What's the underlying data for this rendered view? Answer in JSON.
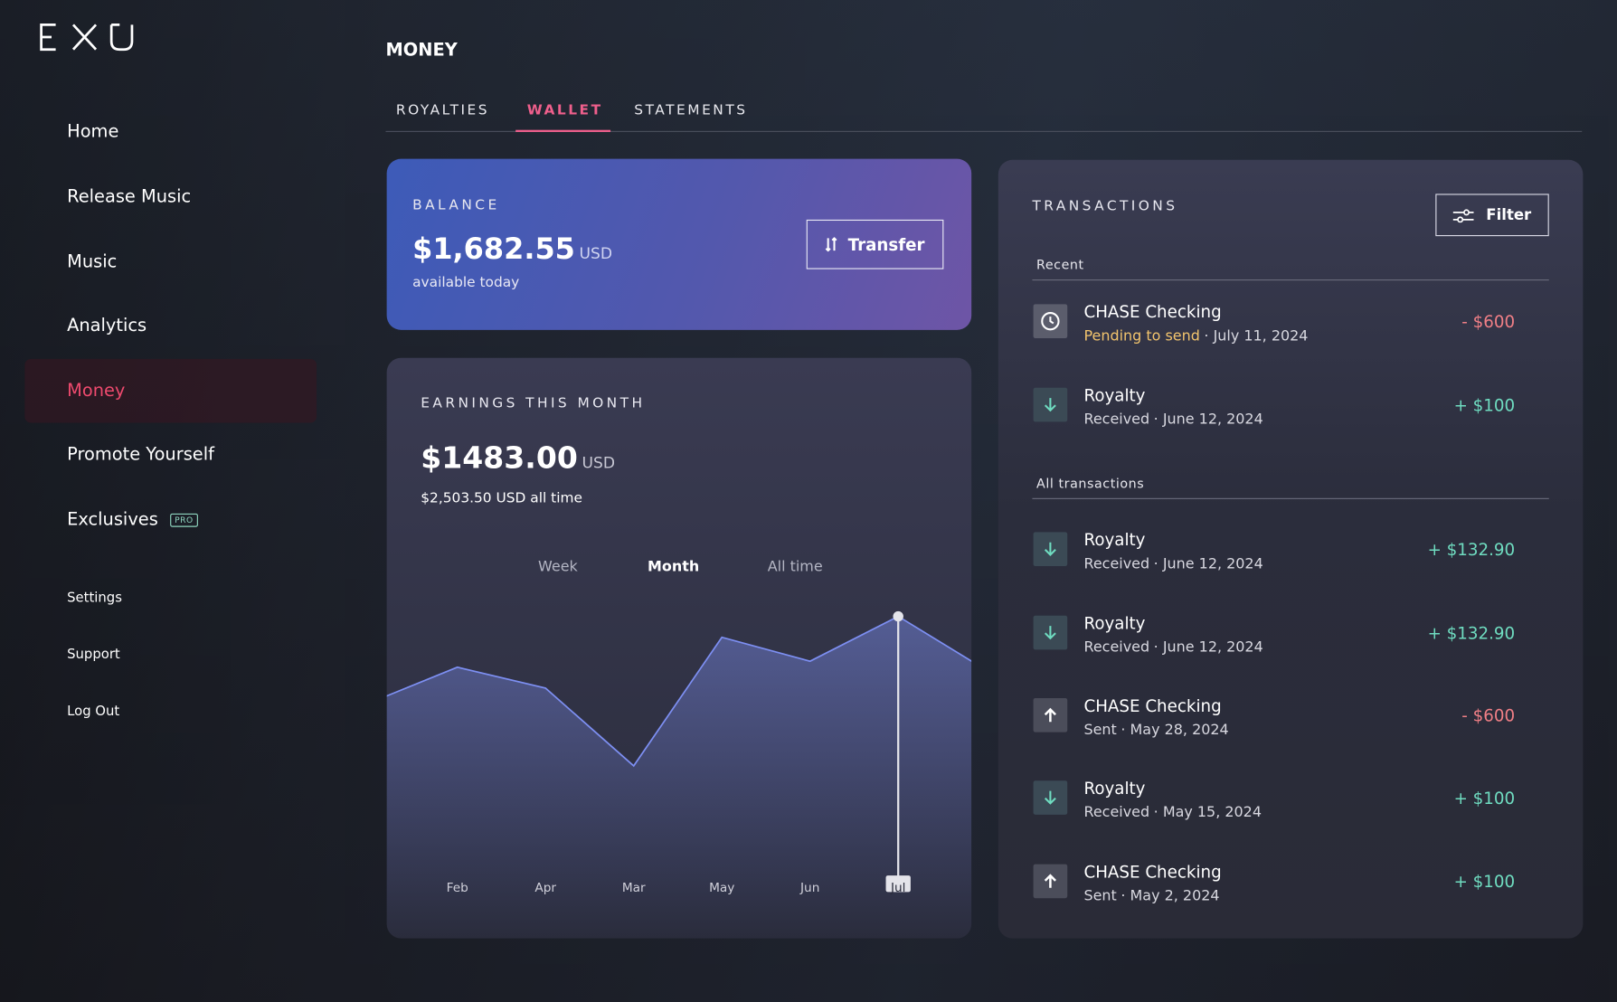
{
  "nav": [
    "Home",
    "Release Music",
    "Music",
    "Analytics",
    "Money",
    "Promote Yourself",
    "Exclusives"
  ],
  "active_nav": 4,
  "pro_badge": "PRO",
  "secondary_nav": [
    "Settings",
    "Support",
    "Log Out"
  ],
  "page_title": "MONEY",
  "tabs": [
    "ROYALTIES",
    "WALLET",
    "STATEMENTS"
  ],
  "active_tab": 1,
  "balance": {
    "label": "BALANCE",
    "amount": "$1,682.55",
    "currency": "USD",
    "note": "available today",
    "button": "Transfer"
  },
  "earnings": {
    "title": "EARNINGS THIS MONTH",
    "amount": "$1483.00",
    "currency": "USD",
    "all_time": "$2,503.50 USD all time",
    "ranges": [
      "Week",
      "Month",
      "All time"
    ],
    "active_range": 1
  },
  "chart_data": {
    "type": "area",
    "categories": [
      null,
      "Feb",
      "Apr",
      "Mar",
      "May",
      "Jun",
      "Jul",
      null
    ],
    "values": [
      58,
      70,
      63,
      37,
      80,
      72,
      87,
      69
    ],
    "ylim": [
      0,
      100
    ],
    "color": "#7d8ff2",
    "highlight": 6
  },
  "transactions": {
    "title": "TRANSACTIONS",
    "filter": "Filter",
    "recent_label": "Recent",
    "recent": [
      {
        "name": "CHASE Checking",
        "status": "Pending to send",
        "status_color": "#f2c46d",
        "date": "· July 11, 2024",
        "amount": "- $600",
        "amount_color": "#f07f86",
        "icon": "clock"
      },
      {
        "name": "Royalty",
        "status": "Received",
        "status_color": "#d8d8e0",
        "date": "· June 12, 2024",
        "amount": "+ $100",
        "amount_color": "#6fdcc0",
        "icon": "down"
      }
    ],
    "all_label": "All transactions",
    "all": [
      {
        "name": "Royalty",
        "status": "Received",
        "status_color": "#d8d8e0",
        "date": "· June 12, 2024",
        "amount": "+ $132.90",
        "amount_color": "#6fdcc0",
        "icon": "down"
      },
      {
        "name": "Royalty",
        "status": "Received",
        "status_color": "#d8d8e0",
        "date": "· June 12, 2024",
        "amount": "+ $132.90",
        "amount_color": "#6fdcc0",
        "icon": "down"
      },
      {
        "name": "CHASE Checking",
        "status": "Sent",
        "status_color": "#d8d8e0",
        "date": "· May 28, 2024",
        "amount": "- $600",
        "amount_color": "#f07f86",
        "icon": "up"
      },
      {
        "name": "Royalty",
        "status": "Received",
        "status_color": "#d8d8e0",
        "date": "· May 15, 2024",
        "amount": "+ $100",
        "amount_color": "#6fdcc0",
        "icon": "down"
      },
      {
        "name": "CHASE Checking",
        "status": "Sent",
        "status_color": "#d8d8e0",
        "date": "· May 2, 2024",
        "amount": "+ $100",
        "amount_color": "#6fdcc0",
        "icon": "up"
      }
    ]
  }
}
